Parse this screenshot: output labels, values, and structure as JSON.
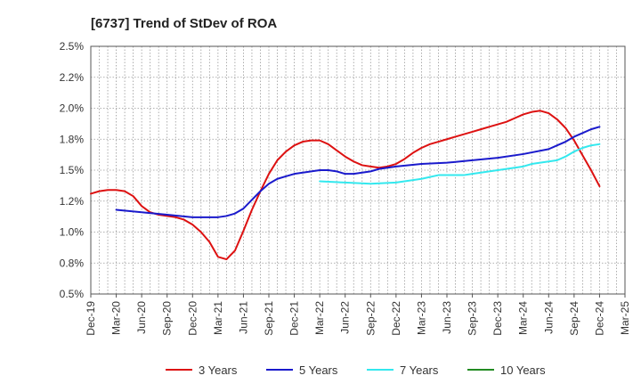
{
  "chart_data": {
    "type": "line",
    "title": "[6737]  Trend of StDev of ROA",
    "xlabel": "",
    "ylabel": "",
    "x_labels": [
      "Dec-19",
      "Mar-20",
      "Jun-20",
      "Sep-20",
      "Dec-20",
      "Mar-21",
      "Jun-21",
      "Sep-21",
      "Dec-21",
      "Mar-22",
      "Jun-22",
      "Sep-22",
      "Dec-22",
      "Mar-23",
      "Jun-23",
      "Sep-23",
      "Dec-23",
      "Mar-24",
      "Jun-24",
      "Sep-24",
      "Dec-24",
      "Mar-25"
    ],
    "y_tick_labels": [
      "0.5%",
      "0.8%",
      "1.0%",
      "1.2%",
      "1.5%",
      "1.8%",
      "2.0%",
      "2.2%",
      "2.5%"
    ],
    "ylim": [
      0.5,
      2.5
    ],
    "grid": true,
    "legend_position": "bottom",
    "series": [
      {
        "name": "3 Years",
        "color": "#dd1111",
        "points": [
          [
            "Dec-19",
            1.31
          ],
          [
            "Jan-20",
            1.33
          ],
          [
            "Feb-20",
            1.34
          ],
          [
            "Mar-20",
            1.34
          ],
          [
            "Apr-20",
            1.33
          ],
          [
            "May-20",
            1.29
          ],
          [
            "Jun-20",
            1.21
          ],
          [
            "Jul-20",
            1.16
          ],
          [
            "Aug-20",
            1.14
          ],
          [
            "Sep-20",
            1.13
          ],
          [
            "Oct-20",
            1.12
          ],
          [
            "Nov-20",
            1.1
          ],
          [
            "Dec-20",
            1.06
          ],
          [
            "Jan-21",
            1.0
          ],
          [
            "Feb-21",
            0.92
          ],
          [
            "Mar-21",
            0.8
          ],
          [
            "Apr-21",
            0.78
          ],
          [
            "May-21",
            0.85
          ],
          [
            "Jun-21",
            1.01
          ],
          [
            "Jul-21",
            1.18
          ],
          [
            "Aug-21",
            1.33
          ],
          [
            "Sep-21",
            1.47
          ],
          [
            "Oct-21",
            1.58
          ],
          [
            "Nov-21",
            1.65
          ],
          [
            "Dec-21",
            1.7
          ],
          [
            "Jan-22",
            1.73
          ],
          [
            "Feb-22",
            1.74
          ],
          [
            "Mar-22",
            1.74
          ],
          [
            "Apr-22",
            1.71
          ],
          [
            "May-22",
            1.66
          ],
          [
            "Jun-22",
            1.61
          ],
          [
            "Jul-22",
            1.57
          ],
          [
            "Aug-22",
            1.54
          ],
          [
            "Sep-22",
            1.53
          ],
          [
            "Oct-22",
            1.52
          ],
          [
            "Nov-22",
            1.53
          ],
          [
            "Dec-22",
            1.55
          ],
          [
            "Jan-23",
            1.59
          ],
          [
            "Feb-23",
            1.64
          ],
          [
            "Mar-23",
            1.68
          ],
          [
            "Apr-23",
            1.71
          ],
          [
            "May-23",
            1.73
          ],
          [
            "Jun-23",
            1.75
          ],
          [
            "Jul-23",
            1.77
          ],
          [
            "Aug-23",
            1.79
          ],
          [
            "Sep-23",
            1.81
          ],
          [
            "Oct-23",
            1.83
          ],
          [
            "Nov-23",
            1.85
          ],
          [
            "Dec-23",
            1.87
          ],
          [
            "Jan-24",
            1.89
          ],
          [
            "Feb-24",
            1.92
          ],
          [
            "Mar-24",
            1.95
          ],
          [
            "Apr-24",
            1.97
          ],
          [
            "May-24",
            1.98
          ],
          [
            "Jun-24",
            1.96
          ],
          [
            "Jul-24",
            1.91
          ],
          [
            "Aug-24",
            1.84
          ],
          [
            "Sep-24",
            1.74
          ],
          [
            "Oct-24",
            1.62
          ],
          [
            "Nov-24",
            1.5
          ],
          [
            "Dec-24",
            1.37
          ]
        ]
      },
      {
        "name": "5 Years",
        "color": "#1a1acc",
        "points": [
          [
            "Mar-20",
            1.18
          ],
          [
            "Jun-20",
            1.16
          ],
          [
            "Sep-20",
            1.14
          ],
          [
            "Dec-20",
            1.12
          ],
          [
            "Mar-21",
            1.12
          ],
          [
            "Apr-21",
            1.13
          ],
          [
            "May-21",
            1.15
          ],
          [
            "Jun-21",
            1.19
          ],
          [
            "Jul-21",
            1.26
          ],
          [
            "Aug-21",
            1.33
          ],
          [
            "Sep-21",
            1.39
          ],
          [
            "Oct-21",
            1.43
          ],
          [
            "Nov-21",
            1.45
          ],
          [
            "Dec-21",
            1.47
          ],
          [
            "Feb-22",
            1.49
          ],
          [
            "Mar-22",
            1.5
          ],
          [
            "Apr-22",
            1.5
          ],
          [
            "May-22",
            1.49
          ],
          [
            "Jun-22",
            1.47
          ],
          [
            "Jul-22",
            1.47
          ],
          [
            "Aug-22",
            1.48
          ],
          [
            "Sep-22",
            1.49
          ],
          [
            "Oct-22",
            1.51
          ],
          [
            "Dec-22",
            1.53
          ],
          [
            "Mar-23",
            1.55
          ],
          [
            "Jun-23",
            1.56
          ],
          [
            "Sep-23",
            1.58
          ],
          [
            "Dec-23",
            1.6
          ],
          [
            "Mar-24",
            1.63
          ],
          [
            "Jun-24",
            1.67
          ],
          [
            "Jul-24",
            1.7
          ],
          [
            "Aug-24",
            1.73
          ],
          [
            "Sep-24",
            1.77
          ],
          [
            "Oct-24",
            1.8
          ],
          [
            "Nov-24",
            1.83
          ],
          [
            "Dec-24",
            1.85
          ]
        ]
      },
      {
        "name": "7 Years",
        "color": "#33e8ee",
        "points": [
          [
            "Mar-22",
            1.41
          ],
          [
            "Jun-22",
            1.4
          ],
          [
            "Sep-22",
            1.39
          ],
          [
            "Dec-22",
            1.4
          ],
          [
            "Mar-23",
            1.43
          ],
          [
            "May-23",
            1.46
          ],
          [
            "Jun-23",
            1.46
          ],
          [
            "Aug-23",
            1.46
          ],
          [
            "Sep-23",
            1.47
          ],
          [
            "Dec-23",
            1.5
          ],
          [
            "Mar-24",
            1.53
          ],
          [
            "Apr-24",
            1.55
          ],
          [
            "May-24",
            1.56
          ],
          [
            "Jun-24",
            1.57
          ],
          [
            "Jul-24",
            1.58
          ],
          [
            "Aug-24",
            1.61
          ],
          [
            "Sep-24",
            1.65
          ],
          [
            "Oct-24",
            1.68
          ],
          [
            "Nov-24",
            1.7
          ],
          [
            "Dec-24",
            1.71
          ]
        ]
      },
      {
        "name": "10 Years",
        "color": "#228b22",
        "points": []
      }
    ]
  }
}
